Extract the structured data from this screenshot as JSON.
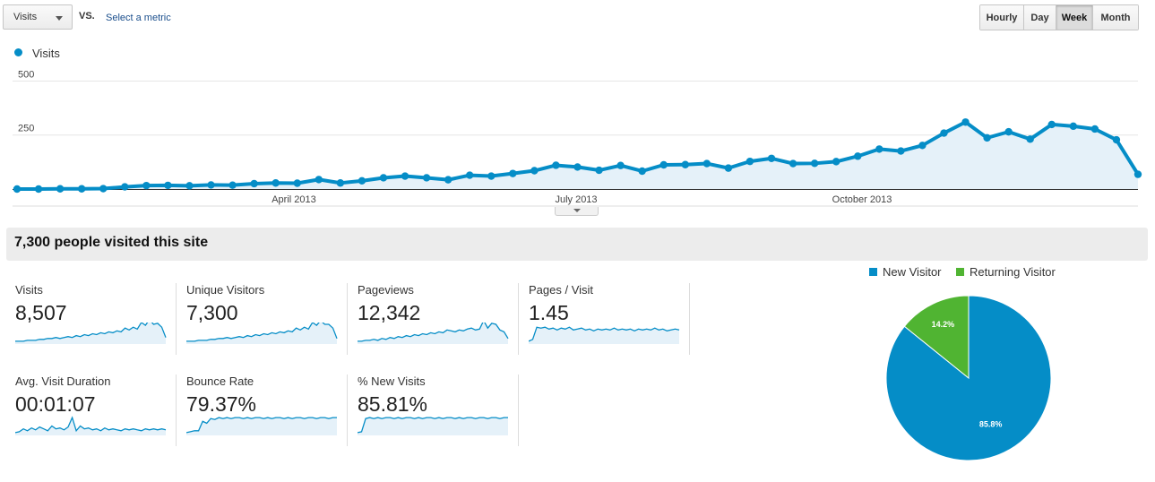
{
  "toolbar": {
    "metric_select": "Visits",
    "vs_label": "VS.",
    "select_metric_link": "Select a metric",
    "granularity": [
      "Hourly",
      "Day",
      "Week",
      "Month"
    ],
    "active_granularity": "Week"
  },
  "chart_data": {
    "type": "area",
    "series": [
      {
        "name": "Visits",
        "color": "#058dc7",
        "values": [
          0,
          0,
          1,
          1,
          2,
          10,
          16,
          17,
          15,
          19,
          18,
          25,
          28,
          27,
          44,
          28,
          38,
          52,
          60,
          52,
          43,
          64,
          60,
          72,
          85,
          110,
          102,
          87,
          109,
          83,
          112,
          113,
          118,
          97,
          128,
          142,
          118,
          119,
          127,
          152,
          185,
          176,
          202,
          259,
          310,
          237,
          265,
          231,
          299,
          291,
          278,
          228,
          68
        ]
      }
    ],
    "x_tick_labels": [
      "April 2013",
      "July 2013",
      "October 2013"
    ],
    "y_tick_labels": [
      "250",
      "500"
    ],
    "ylim": [
      0,
      560
    ],
    "grid": true,
    "legend_position": "top-left",
    "fill_color": "#e5f1f9"
  },
  "summary": {
    "title": "7,300 people visited this site"
  },
  "metrics": [
    {
      "label": "Visits",
      "value": "8,507",
      "spark": [
        2,
        2,
        2,
        3,
        3,
        3,
        4,
        4,
        5,
        5,
        6,
        5,
        6,
        7,
        6,
        8,
        7,
        9,
        8,
        10,
        9,
        11,
        10,
        12,
        11,
        13,
        12,
        16,
        14,
        17,
        15,
        22,
        19,
        25,
        20,
        21,
        17,
        6
      ]
    },
    {
      "label": "Unique Visitors",
      "value": "7,300",
      "spark": [
        2,
        2,
        2,
        3,
        3,
        3,
        4,
        4,
        5,
        5,
        6,
        5,
        6,
        7,
        6,
        8,
        7,
        9,
        8,
        10,
        9,
        11,
        10,
        12,
        11,
        13,
        12,
        16,
        14,
        17,
        15,
        22,
        19,
        24,
        20,
        20,
        16,
        5
      ]
    },
    {
      "label": "Pageviews",
      "value": "12,342",
      "spark": [
        2,
        2,
        3,
        3,
        4,
        3,
        5,
        4,
        6,
        5,
        7,
        6,
        8,
        7,
        9,
        8,
        10,
        9,
        11,
        10,
        12,
        11,
        14,
        13,
        12,
        14,
        13,
        15,
        16,
        14,
        15,
        24,
        16,
        21,
        20,
        14,
        12,
        5
      ]
    },
    {
      "label": "Pages / Visit",
      "value": "1.45",
      "spark": [
        2,
        4,
        17,
        16,
        17,
        15,
        16,
        14,
        16,
        15,
        17,
        14,
        15,
        16,
        14,
        15,
        13,
        15,
        14,
        15,
        14,
        16,
        14,
        15,
        14,
        15,
        13,
        15,
        14,
        15,
        14,
        16,
        14,
        15,
        13,
        14,
        15,
        14
      ]
    },
    {
      "label": "Avg. Visit Duration",
      "value": "00:01:07",
      "spark": [
        2,
        3,
        6,
        4,
        7,
        5,
        8,
        6,
        4,
        9,
        6,
        7,
        5,
        8,
        18,
        4,
        9,
        6,
        7,
        5,
        6,
        4,
        7,
        5,
        6,
        5,
        4,
        6,
        5,
        6,
        5,
        4,
        6,
        5,
        6,
        5,
        6,
        5
      ]
    },
    {
      "label": "Bounce Rate",
      "value": "79.37%",
      "spark": [
        2,
        3,
        4,
        4,
        14,
        12,
        17,
        16,
        18,
        17,
        18,
        17,
        18,
        18,
        17,
        18,
        17,
        18,
        18,
        17,
        18,
        17,
        18,
        18,
        17,
        18,
        17,
        18,
        18,
        17,
        18,
        18,
        17,
        18,
        18,
        17,
        18,
        18
      ]
    },
    {
      "label": "% New Visits",
      "value": "85.81%",
      "spark": [
        2,
        3,
        17,
        18,
        17,
        18,
        17,
        18,
        18,
        17,
        18,
        17,
        18,
        18,
        17,
        18,
        17,
        18,
        18,
        17,
        18,
        17,
        18,
        18,
        17,
        18,
        17,
        18,
        18,
        17,
        18,
        18,
        17,
        18,
        18,
        17,
        18,
        18
      ]
    }
  ],
  "pie": {
    "legend": [
      {
        "label": "New Visitor",
        "color": "#058dc7"
      },
      {
        "label": "Returning Visitor",
        "color": "#50b432"
      }
    ],
    "slices": [
      {
        "label": "New Visitor",
        "percent": 85.8,
        "text": "85.8%",
        "color": "#058dc7"
      },
      {
        "label": "Returning Visitor",
        "percent": 14.2,
        "text": "14.2%",
        "color": "#50b432"
      }
    ]
  }
}
